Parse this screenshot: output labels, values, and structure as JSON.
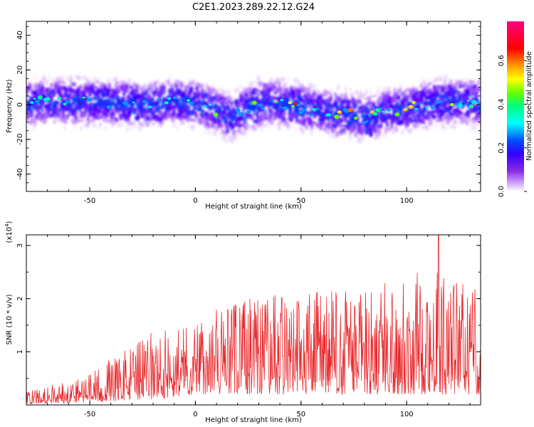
{
  "title": "C2E1.2023.289.22.12.G24",
  "chart_data": [
    {
      "type": "heatmap",
      "xlabel": "Height of straight line (km)",
      "ylabel": "Frequency (Hz)",
      "xlim": [
        -80,
        135
      ],
      "ylim": [
        -50,
        48
      ],
      "xticks": [
        -50,
        0,
        50,
        100
      ],
      "yticks": [
        -40,
        -20,
        0,
        20,
        40
      ],
      "centerline": [
        {
          "x": -80,
          "y": 1
        },
        {
          "x": -60,
          "y": 2
        },
        {
          "x": -40,
          "y": 1
        },
        {
          "x": -20,
          "y": 0
        },
        {
          "x": -10,
          "y": 2
        },
        {
          "x": 0,
          "y": 1
        },
        {
          "x": 10,
          "y": -3
        },
        {
          "x": 18,
          "y": -7
        },
        {
          "x": 25,
          "y": -2
        },
        {
          "x": 35,
          "y": 2
        },
        {
          "x": 45,
          "y": 0
        },
        {
          "x": 55,
          "y": -3
        },
        {
          "x": 65,
          "y": -5
        },
        {
          "x": 75,
          "y": -6
        },
        {
          "x": 82,
          "y": -8
        },
        {
          "x": 90,
          "y": -4
        },
        {
          "x": 100,
          "y": -2
        },
        {
          "x": 110,
          "y": 0
        },
        {
          "x": 120,
          "y": 2
        },
        {
          "x": 135,
          "y": 1
        }
      ],
      "colorbar": {
        "label": "Normalized spectral amplitude",
        "ticks": [
          "0.0",
          "0.2",
          "0.4",
          "0.6"
        ],
        "range": [
          0,
          0.78
        ]
      }
    },
    {
      "type": "line",
      "xlabel": "Height of straight line (km)",
      "ylabel": "SNR (10 * v/v)",
      "multiplier": "(x10",
      "multiplier_exp": "4",
      "xlim": [
        -80,
        135
      ],
      "ylim": [
        0,
        3.2
      ],
      "xticks": [
        -50,
        0,
        50,
        100
      ],
      "yticks": [
        1,
        2,
        3
      ],
      "color": "#e8262a",
      "envelope": [
        {
          "x": -80,
          "lo": 0.02,
          "hi": 0.25
        },
        {
          "x": -50,
          "lo": 0.05,
          "hi": 0.6
        },
        {
          "x": -20,
          "lo": 0.1,
          "hi": 1.4
        },
        {
          "x": 0,
          "lo": 0.2,
          "hi": 1.6
        },
        {
          "x": 20,
          "lo": 0.2,
          "hi": 2.0
        },
        {
          "x": 50,
          "lo": 0.2,
          "hi": 2.2
        },
        {
          "x": 80,
          "lo": 0.2,
          "hi": 2.2
        },
        {
          "x": 110,
          "lo": 0.2,
          "hi": 2.6
        },
        {
          "x": 135,
          "lo": 0.2,
          "hi": 2.2
        }
      ],
      "peak": {
        "x": 115,
        "y": 3.2
      }
    }
  ]
}
